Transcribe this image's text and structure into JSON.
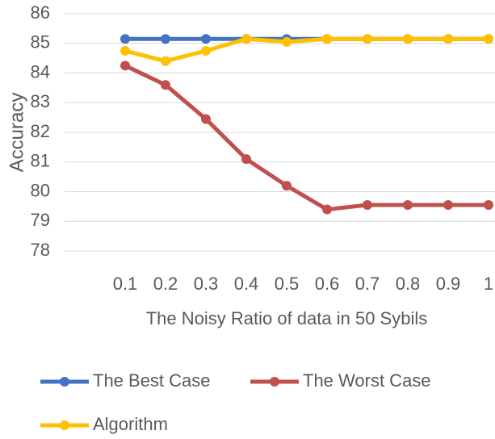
{
  "chart_data": {
    "type": "line",
    "x_label": "The Noisy Ratio of data in 50 Sybils",
    "y_label": "Accuracy",
    "categories": [
      "0.1",
      "0.2",
      "0.3",
      "0.4",
      "0.5",
      "0.6",
      "0.7",
      "0.8",
      "0.9",
      "1"
    ],
    "series": [
      {
        "name": "The Best Case",
        "color": "#4472c4",
        "values": [
          85.15,
          85.15,
          85.15,
          85.15,
          85.15,
          85.15,
          85.15,
          85.15,
          85.15,
          85.15
        ]
      },
      {
        "name": "The Worst Case",
        "color": "#c0504d",
        "values": [
          84.25,
          83.6,
          82.45,
          81.1,
          80.2,
          79.4,
          79.55,
          79.55,
          79.55,
          79.55
        ]
      },
      {
        "name": "Algorithm",
        "color": "#ffc000",
        "values": [
          84.75,
          84.4,
          84.75,
          85.15,
          85.05,
          85.15,
          85.15,
          85.15,
          85.15,
          85.15
        ]
      }
    ],
    "ylim": [
      78,
      86
    ],
    "yticks": [
      78,
      79,
      80,
      81,
      82,
      83,
      84,
      85,
      86
    ],
    "grid": true
  }
}
